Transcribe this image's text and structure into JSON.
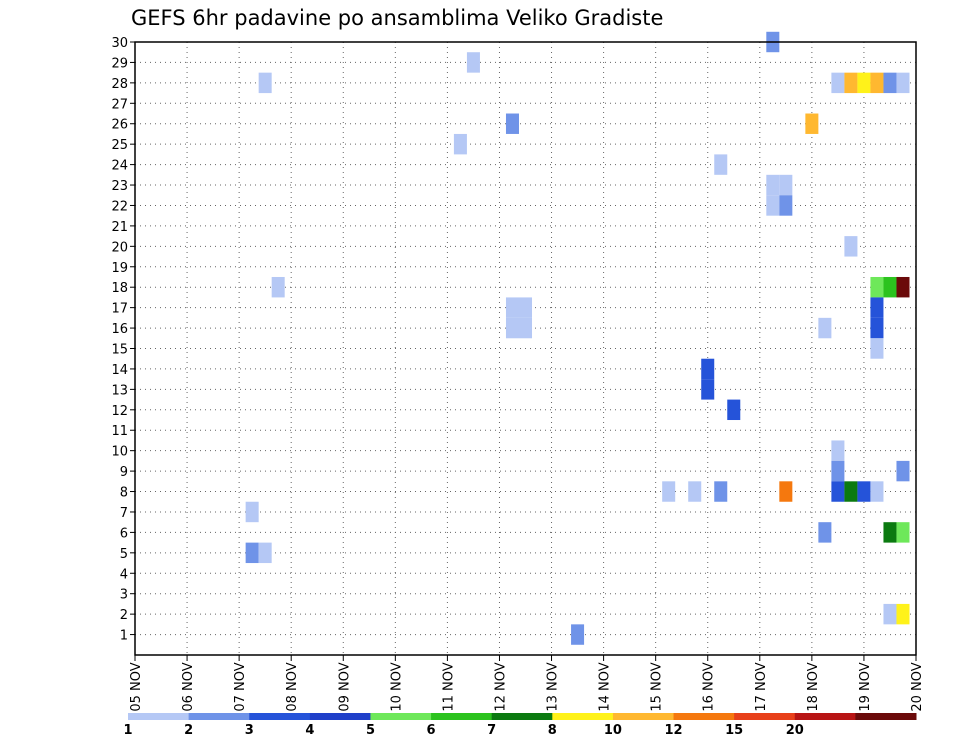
{
  "chart_data": {
    "type": "heatmap",
    "title": "GEFS 6hr padavine po ansamblima Veliko Gradiste",
    "x_unit": "days",
    "x_start_day": 5,
    "x_labels": [
      "05 NOV",
      "06 NOV",
      "07 NOV",
      "08 NOV",
      "09 NOV",
      "10 NOV",
      "11 NOV",
      "12 NOV",
      "13 NOV",
      "14 NOV",
      "15 NOV",
      "16 NOV",
      "17 NOV",
      "18 NOV",
      "19 NOV",
      "20 NOV"
    ],
    "y_labels": [
      "1",
      "2",
      "3",
      "4",
      "5",
      "6",
      "7",
      "8",
      "9",
      "10",
      "11",
      "12",
      "13",
      "14",
      "15",
      "16",
      "17",
      "18",
      "19",
      "20",
      "21",
      "22",
      "23",
      "24",
      "25",
      "26",
      "27",
      "28",
      "29",
      "30"
    ],
    "xlim": [
      5,
      20
    ],
    "ylim": [
      0,
      30
    ],
    "grid": true,
    "legend": {
      "placement": "bottom",
      "colors": [
        "#b5c8f5",
        "#6f93e8",
        "#2553d9",
        "#1f3fc9",
        "#6ee85a",
        "#2cc31e",
        "#0b7a10",
        "#fff21a",
        "#ffb830",
        "#f5780e",
        "#e8401a",
        "#b81414",
        "#6b0a0a"
      ],
      "labels": [
        "1",
        "2",
        "3",
        "4",
        "5",
        "6",
        "7",
        "8",
        "10",
        "12",
        "15",
        "20"
      ]
    },
    "cells": [
      {
        "x": 17.25,
        "y": 30,
        "c": 1
      },
      {
        "x": 11.5,
        "y": 29,
        "c": 0
      },
      {
        "x": 7.5,
        "y": 28,
        "c": 0
      },
      {
        "x": 18.5,
        "y": 28,
        "c": 0
      },
      {
        "x": 18.75,
        "y": 28,
        "c": 8
      },
      {
        "x": 19.0,
        "y": 28,
        "c": 7
      },
      {
        "x": 19.25,
        "y": 28,
        "c": 8
      },
      {
        "x": 19.5,
        "y": 28,
        "c": 1
      },
      {
        "x": 19.75,
        "y": 28,
        "c": 0
      },
      {
        "x": 12.25,
        "y": 26,
        "c": 1
      },
      {
        "x": 18.0,
        "y": 26,
        "c": 8
      },
      {
        "x": 11.25,
        "y": 25,
        "c": 0
      },
      {
        "x": 16.25,
        "y": 24,
        "c": 0
      },
      {
        "x": 17.25,
        "y": 23,
        "c": 0
      },
      {
        "x": 17.5,
        "y": 23,
        "c": 0
      },
      {
        "x": 17.25,
        "y": 22,
        "c": 0
      },
      {
        "x": 17.5,
        "y": 22,
        "c": 1
      },
      {
        "x": 18.75,
        "y": 20,
        "c": 0
      },
      {
        "x": 7.75,
        "y": 18,
        "c": 0
      },
      {
        "x": 19.25,
        "y": 18,
        "c": 4
      },
      {
        "x": 19.5,
        "y": 18,
        "c": 5
      },
      {
        "x": 19.75,
        "y": 18,
        "c": 12
      },
      {
        "x": 12.25,
        "y": 17,
        "c": 0
      },
      {
        "x": 12.5,
        "y": 17,
        "c": 0
      },
      {
        "x": 19.25,
        "y": 17,
        "c": 2
      },
      {
        "x": 12.25,
        "y": 16,
        "c": 0
      },
      {
        "x": 12.5,
        "y": 16,
        "c": 0
      },
      {
        "x": 18.25,
        "y": 16,
        "c": 0
      },
      {
        "x": 19.25,
        "y": 16,
        "c": 2
      },
      {
        "x": 19.25,
        "y": 15,
        "c": 0
      },
      {
        "x": 16.0,
        "y": 14,
        "c": 2
      },
      {
        "x": 16.0,
        "y": 13,
        "c": 2
      },
      {
        "x": 16.5,
        "y": 12,
        "c": 2
      },
      {
        "x": 18.5,
        "y": 10,
        "c": 0
      },
      {
        "x": 18.5,
        "y": 9,
        "c": 1
      },
      {
        "x": 19.75,
        "y": 9,
        "c": 1
      },
      {
        "x": 15.25,
        "y": 8,
        "c": 0
      },
      {
        "x": 15.75,
        "y": 8,
        "c": 0
      },
      {
        "x": 16.25,
        "y": 8,
        "c": 1
      },
      {
        "x": 17.5,
        "y": 8,
        "c": 9
      },
      {
        "x": 18.5,
        "y": 8,
        "c": 2
      },
      {
        "x": 18.75,
        "y": 8,
        "c": 6
      },
      {
        "x": 19.0,
        "y": 8,
        "c": 2
      },
      {
        "x": 19.25,
        "y": 8,
        "c": 0
      },
      {
        "x": 7.25,
        "y": 7,
        "c": 0
      },
      {
        "x": 18.25,
        "y": 6,
        "c": 1
      },
      {
        "x": 19.5,
        "y": 6,
        "c": 6
      },
      {
        "x": 19.75,
        "y": 6,
        "c": 4
      },
      {
        "x": 7.25,
        "y": 5,
        "c": 1
      },
      {
        "x": 7.5,
        "y": 5,
        "c": 0
      },
      {
        "x": 19.5,
        "y": 2,
        "c": 0
      },
      {
        "x": 19.75,
        "y": 2,
        "c": 7
      },
      {
        "x": 13.5,
        "y": 1,
        "c": 1
      }
    ]
  }
}
